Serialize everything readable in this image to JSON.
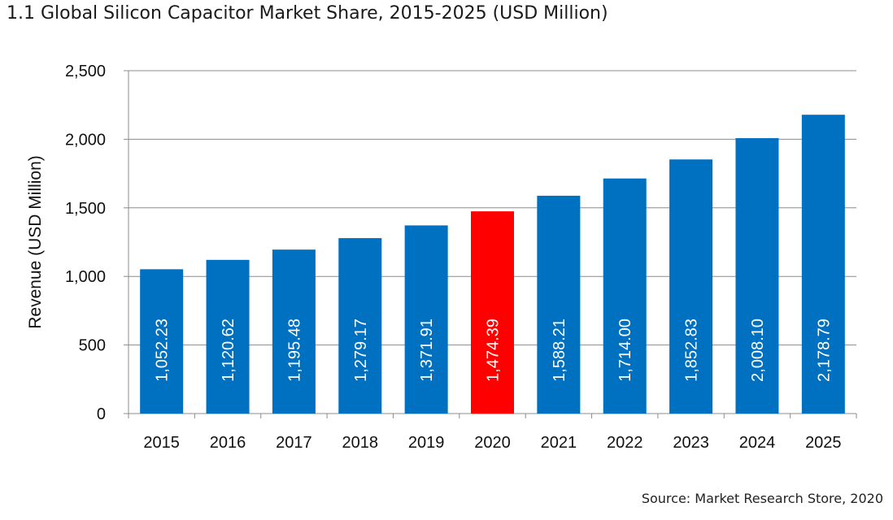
{
  "chart_data": {
    "type": "bar",
    "title": "1.1 Global Silicon Capacitor Market Share, 2015-2025 (USD Million)",
    "ylabel": "Revenue (USD Million)",
    "xlabel": "",
    "ylim": [
      0,
      2500
    ],
    "yticks": [
      0,
      500,
      1000,
      1500,
      2000,
      2500
    ],
    "ytick_labels": [
      "0",
      "500",
      "1,000",
      "1,500",
      "2,000",
      "2,500"
    ],
    "grid": true,
    "categories": [
      "2015",
      "2016",
      "2017",
      "2018",
      "2019",
      "2020",
      "2021",
      "2022",
      "2023",
      "2024",
      "2025"
    ],
    "values": [
      1052.23,
      1120.62,
      1195.48,
      1279.17,
      1371.91,
      1474.39,
      1588.21,
      1714.0,
      1852.83,
      2008.1,
      2178.79
    ],
    "value_labels": [
      "1,052.23",
      "1,120.62",
      "1,195.48",
      "1,279.17",
      "1,371.91",
      "1,474.39",
      "1,588.21",
      "1,714.00",
      "1,852.83",
      "2,008.10",
      "2,178.79"
    ],
    "colors": {
      "bar": "#0070C0",
      "highlight": "#FF0000",
      "label": "#ffffff",
      "grid": "#8c8c8c"
    },
    "highlight_category": "2020"
  },
  "source": "Source: Market Research Store, 2020"
}
